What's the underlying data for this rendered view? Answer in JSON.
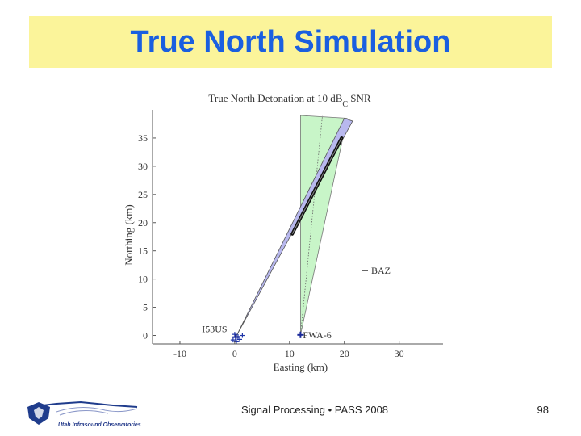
{
  "slide": {
    "title": "True North Simulation",
    "footer": "Signal Processing • PASS 2008",
    "page_number": "98",
    "logo_caption": "Utah Infrasound Observatories"
  },
  "chart_data": {
    "type": "scatter",
    "title": "True North Detonation at 10 dB",
    "title_subscript": "C",
    "title_suffix": " SNR",
    "xlabel": "Easting (km)",
    "ylabel": "Northing (km)",
    "xlim": [
      -15,
      38
    ],
    "ylim": [
      -1.5,
      40
    ],
    "xticks": [
      -10,
      0,
      10,
      20,
      30
    ],
    "yticks": [
      0,
      5,
      10,
      15,
      20,
      25,
      30,
      35
    ],
    "grid": false,
    "stations": [
      {
        "name": "I53US",
        "x": 0.2,
        "y": -0.3
      },
      {
        "name": "FWA-6",
        "x": 12.0,
        "y": 0.1
      }
    ],
    "i53_elements": [
      {
        "x": 0.0,
        "y": 0.2
      },
      {
        "x": 0.6,
        "y": -0.2
      },
      {
        "x": -0.3,
        "y": -0.8
      },
      {
        "x": 0.9,
        "y": -0.7
      },
      {
        "x": 0.3,
        "y": -1.0
      },
      {
        "x": 1.4,
        "y": 0.0
      }
    ],
    "fwa_wedge": {
      "apex": [
        12.0,
        0.1
      ],
      "left": [
        12.0,
        39.0
      ],
      "right": [
        20.5,
        38.5
      ],
      "center": [
        16.0,
        39.0
      ],
      "color": "#c8f5c8"
    },
    "i53_wedge": {
      "apex": [
        0.2,
        -0.3
      ],
      "edge_a": [
        20.0,
        38.5
      ],
      "edge_b": [
        21.5,
        38.0
      ],
      "color": "#b8b8ee"
    },
    "intersection": {
      "from": [
        10.5,
        18.0
      ],
      "to": [
        19.5,
        35.0
      ]
    },
    "legend": {
      "label": "BAZ",
      "placement": "right"
    }
  }
}
